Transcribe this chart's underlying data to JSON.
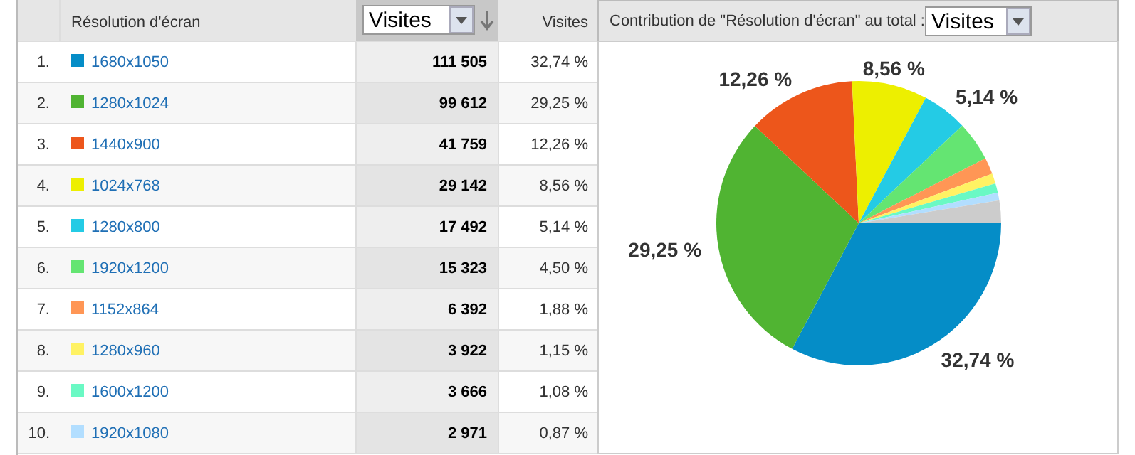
{
  "chart_data": {
    "type": "pie",
    "categories": [
      "1680x1050",
      "1280x1024",
      "1440x900",
      "1024x768",
      "1280x800",
      "1920x1200",
      "1152x864",
      "1280x960",
      "1600x1200",
      "1920x1080",
      null
    ],
    "values": [
      32.74,
      29.25,
      12.26,
      8.56,
      5.14,
      4.5,
      1.88,
      1.15,
      1.08,
      0.87,
      2.57
    ],
    "colors": [
      "#058dc7",
      "#50b432",
      "#ed561b",
      "#edef00",
      "#24cbe5",
      "#64e572",
      "#ff9655",
      "#fff263",
      "#6af9c4",
      "#b2deff",
      "#cccccc"
    ],
    "value_labels": [
      "32,74 %",
      "29,25 %",
      "12,26 %",
      "8,56 %",
      "5,14 %",
      "4,50 %",
      "1,88 %",
      "1,15 %",
      "1,08 %",
      "0,87 %",
      null
    ],
    "legend": "left",
    "annotations": [
      "Résolution d'écran",
      "Visites",
      "Visites",
      "Contribution de \"Résolution d'écran\" au total :",
      "Visites",
      "1.",
      "2.",
      "3.",
      "4.",
      "5.",
      "6.",
      "7.",
      "8.",
      "9.",
      "10.",
      "111 505",
      "99 612",
      "41 759",
      "29 142",
      "17 492",
      "15 323",
      "6 392",
      "3 922",
      "3 666",
      "2 971"
    ]
  }
}
